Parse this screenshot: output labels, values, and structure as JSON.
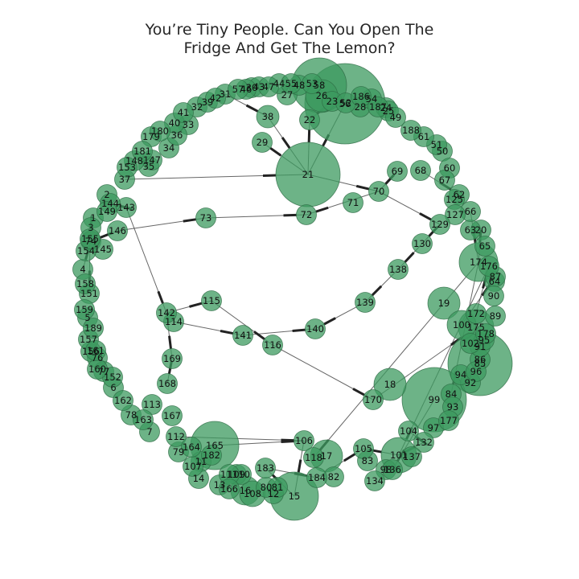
{
  "title": "You’re Tiny People. Can You Open The\nFridge And Get The Lemon?",
  "colors": {
    "node_fill": "#3c9a5f",
    "node_stroke": "#2e6b45",
    "edge": "#333333",
    "title": "#262626"
  },
  "graph": {
    "nodes": [
      {
        "id": "1",
        "label": "1",
        "size": 1
      },
      {
        "id": "2",
        "label": "2",
        "size": 1
      },
      {
        "id": "3",
        "label": "3",
        "size": 1
      },
      {
        "id": "4",
        "label": "4",
        "size": 1
      },
      {
        "id": "5",
        "label": "5",
        "size": 1
      },
      {
        "id": "6",
        "label": "6",
        "size": 1
      },
      {
        "id": "7",
        "label": "7",
        "size": 1
      },
      {
        "id": "11",
        "label": "11",
        "size": 1
      },
      {
        "id": "12",
        "label": "12",
        "size": 1
      },
      {
        "id": "13",
        "label": "13",
        "size": 1
      },
      {
        "id": "14",
        "label": "14",
        "size": 1
      },
      {
        "id": "15",
        "label": "15",
        "size": 4
      },
      {
        "id": "16",
        "label": "16",
        "size": 1.5
      },
      {
        "id": "17",
        "label": "17",
        "size": 2
      },
      {
        "id": "18",
        "label": "18",
        "size": 2
      },
      {
        "id": "19",
        "label": "19",
        "size": 2
      },
      {
        "id": "20",
        "label": "20",
        "size": 1
      },
      {
        "id": "21",
        "label": "21",
        "size": 6
      },
      {
        "id": "22",
        "label": "22",
        "size": 1
      },
      {
        "id": "23",
        "label": "23",
        "size": 1
      },
      {
        "id": "24",
        "label": "24",
        "size": 1
      },
      {
        "id": "25",
        "label": "25",
        "size": 1
      },
      {
        "id": "26",
        "label": "26",
        "size": 3
      },
      {
        "id": "27",
        "label": "27",
        "size": 1
      },
      {
        "id": "28",
        "label": "28",
        "size": 1
      },
      {
        "id": "29",
        "label": "29",
        "size": 1
      },
      {
        "id": "30",
        "label": "30",
        "size": 1
      },
      {
        "id": "31",
        "label": "31",
        "size": 1
      },
      {
        "id": "32",
        "label": "32",
        "size": 1
      },
      {
        "id": "33",
        "label": "33",
        "size": 1
      },
      {
        "id": "34",
        "label": "34",
        "size": 1
      },
      {
        "id": "35",
        "label": "35",
        "size": 1
      },
      {
        "id": "36",
        "label": "36",
        "size": 1
      },
      {
        "id": "37",
        "label": "37",
        "size": 1
      },
      {
        "id": "38",
        "label": "38",
        "size": 1.2
      },
      {
        "id": "39",
        "label": "39",
        "size": 1
      },
      {
        "id": "40",
        "label": "40",
        "size": 1
      },
      {
        "id": "41",
        "label": "41",
        "size": 1
      },
      {
        "id": "42",
        "label": "42",
        "size": 1
      },
      {
        "id": "43",
        "label": "43",
        "size": 1
      },
      {
        "id": "44",
        "label": "44",
        "size": 1
      },
      {
        "id": "46",
        "label": "46",
        "size": 1
      },
      {
        "id": "47",
        "label": "47",
        "size": 1
      },
      {
        "id": "48",
        "label": "48",
        "size": 1
      },
      {
        "id": "49",
        "label": "49",
        "size": 1
      },
      {
        "id": "50",
        "label": "50",
        "size": 1
      },
      {
        "id": "51",
        "label": "51",
        "size": 1
      },
      {
        "id": "52",
        "label": "52",
        "size": 1
      },
      {
        "id": "53",
        "label": "53",
        "size": 1
      },
      {
        "id": "54",
        "label": "54",
        "size": 1
      },
      {
        "id": "55",
        "label": "55",
        "size": 1
      },
      {
        "id": "56",
        "label": "56",
        "size": 8
      },
      {
        "id": "57",
        "label": "57",
        "size": 1
      },
      {
        "id": "58",
        "label": "58",
        "size": 4
      },
      {
        "id": "60",
        "label": "60",
        "size": 1
      },
      {
        "id": "61",
        "label": "61",
        "size": 1
      },
      {
        "id": "62",
        "label": "62",
        "size": 1
      },
      {
        "id": "63",
        "label": "63",
        "size": 1
      },
      {
        "id": "64",
        "label": "64",
        "size": 1
      },
      {
        "id": "65",
        "label": "65",
        "size": 1
      },
      {
        "id": "66",
        "label": "66",
        "size": 1
      },
      {
        "id": "67",
        "label": "67",
        "size": 1
      },
      {
        "id": "68",
        "label": "68",
        "size": 1
      },
      {
        "id": "69",
        "label": "69",
        "size": 1
      },
      {
        "id": "70",
        "label": "70",
        "size": 1
      },
      {
        "id": "71",
        "label": "71",
        "size": 1
      },
      {
        "id": "72",
        "label": "72",
        "size": 1
      },
      {
        "id": "73",
        "label": "73",
        "size": 1
      },
      {
        "id": "74",
        "label": "74",
        "size": 1
      },
      {
        "id": "76",
        "label": "76",
        "size": 1
      },
      {
        "id": "77",
        "label": "77",
        "size": 1
      },
      {
        "id": "78",
        "label": "78",
        "size": 1
      },
      {
        "id": "79",
        "label": "79",
        "size": 1
      },
      {
        "id": "80",
        "label": "80",
        "size": 1
      },
      {
        "id": "81",
        "label": "81",
        "size": 1
      },
      {
        "id": "82",
        "label": "82",
        "size": 1
      },
      {
        "id": "83",
        "label": "83",
        "size": 1
      },
      {
        "id": "84",
        "label": "84",
        "size": 1
      },
      {
        "id": "85",
        "label": "85",
        "size": 3
      },
      {
        "id": "86",
        "label": "86",
        "size": 1
      },
      {
        "id": "87",
        "label": "87",
        "size": 1
      },
      {
        "id": "89",
        "label": "89",
        "size": 1
      },
      {
        "id": "90",
        "label": "90",
        "size": 1
      },
      {
        "id": "91",
        "label": "91",
        "size": 1
      },
      {
        "id": "92",
        "label": "92",
        "size": 1
      },
      {
        "id": "93",
        "label": "93",
        "size": 1
      },
      {
        "id": "94",
        "label": "94",
        "size": 1
      },
      {
        "id": "95",
        "label": "95",
        "size": 1
      },
      {
        "id": "96",
        "label": "96",
        "size": 1
      },
      {
        "id": "97",
        "label": "97",
        "size": 1
      },
      {
        "id": "98",
        "label": "98",
        "size": 1
      },
      {
        "id": "99",
        "label": "99",
        "size": 6
      },
      {
        "id": "100",
        "label": "100",
        "size": 1.5
      },
      {
        "id": "101",
        "label": "101",
        "size": 2
      },
      {
        "id": "102",
        "label": "102",
        "size": 1
      },
      {
        "id": "104",
        "label": "104",
        "size": 1
      },
      {
        "id": "105",
        "label": "105",
        "size": 1
      },
      {
        "id": "106",
        "label": "106",
        "size": 1
      },
      {
        "id": "107",
        "label": "107",
        "size": 1
      },
      {
        "id": "108",
        "label": "108",
        "size": 1.5
      },
      {
        "id": "109",
        "label": "109",
        "size": 1
      },
      {
        "id": "110",
        "label": "110",
        "size": 1
      },
      {
        "id": "111",
        "label": "111",
        "size": 1
      },
      {
        "id": "112",
        "label": "112",
        "size": 1
      },
      {
        "id": "113",
        "label": "113",
        "size": 1
      },
      {
        "id": "114",
        "label": "114",
        "size": 1
      },
      {
        "id": "115",
        "label": "115",
        "size": 1
      },
      {
        "id": "116",
        "label": "116",
        "size": 1
      },
      {
        "id": "118",
        "label": "118",
        "size": 1
      },
      {
        "id": "125",
        "label": "125",
        "size": 1
      },
      {
        "id": "127",
        "label": "127",
        "size": 1
      },
      {
        "id": "129",
        "label": "129",
        "size": 1
      },
      {
        "id": "130",
        "label": "130",
        "size": 1
      },
      {
        "id": "132",
        "label": "132",
        "size": 1
      },
      {
        "id": "134",
        "label": "134",
        "size": 1
      },
      {
        "id": "136",
        "label": "136",
        "size": 1
      },
      {
        "id": "137",
        "label": "137",
        "size": 1
      },
      {
        "id": "138",
        "label": "138",
        "size": 1
      },
      {
        "id": "139",
        "label": "139",
        "size": 1
      },
      {
        "id": "140",
        "label": "140",
        "size": 1
      },
      {
        "id": "141",
        "label": "141",
        "size": 1
      },
      {
        "id": "142",
        "label": "142",
        "size": 1
      },
      {
        "id": "143",
        "label": "143",
        "size": 1
      },
      {
        "id": "144",
        "label": "144",
        "size": 1
      },
      {
        "id": "145",
        "label": "145",
        "size": 1
      },
      {
        "id": "146",
        "label": "146",
        "size": 1
      },
      {
        "id": "147",
        "label": "147",
        "size": 1
      },
      {
        "id": "148",
        "label": "148",
        "size": 1
      },
      {
        "id": "149",
        "label": "149",
        "size": 1
      },
      {
        "id": "151",
        "label": "151",
        "size": 1
      },
      {
        "id": "152",
        "label": "152",
        "size": 1
      },
      {
        "id": "153",
        "label": "153",
        "size": 1
      },
      {
        "id": "154",
        "label": "154",
        "size": 1
      },
      {
        "id": "155",
        "label": "155",
        "size": 1
      },
      {
        "id": "156",
        "label": "156",
        "size": 1
      },
      {
        "id": "157",
        "label": "157",
        "size": 1
      },
      {
        "id": "158",
        "label": "158",
        "size": 1
      },
      {
        "id": "159",
        "label": "159",
        "size": 1
      },
      {
        "id": "160",
        "label": "160",
        "size": 1
      },
      {
        "id": "161",
        "label": "161",
        "size": 1
      },
      {
        "id": "162",
        "label": "162",
        "size": 1
      },
      {
        "id": "163",
        "label": "163",
        "size": 1
      },
      {
        "id": "164",
        "label": "164",
        "size": 1
      },
      {
        "id": "165",
        "label": "165",
        "size": 3
      },
      {
        "id": "166",
        "label": "166",
        "size": 1
      },
      {
        "id": "167",
        "label": "167",
        "size": 1
      },
      {
        "id": "168",
        "label": "168",
        "size": 1
      },
      {
        "id": "169",
        "label": "169",
        "size": 1
      },
      {
        "id": "170",
        "label": "170",
        "size": 1
      },
      {
        "id": "172",
        "label": "172",
        "size": 1
      },
      {
        "id": "174",
        "label": "174",
        "size": 2
      },
      {
        "id": "175",
        "label": "175",
        "size": 2
      },
      {
        "id": "176",
        "label": "176",
        "size": 1
      },
      {
        "id": "177",
        "label": "177",
        "size": 1
      },
      {
        "id": "178",
        "label": "178",
        "size": 1
      },
      {
        "id": "179",
        "label": "179",
        "size": 1
      },
      {
        "id": "180",
        "label": "180",
        "size": 1
      },
      {
        "id": "181",
        "label": "181",
        "size": 1
      },
      {
        "id": "182",
        "label": "182",
        "size": 1
      },
      {
        "id": "183",
        "label": "183",
        "size": 1
      },
      {
        "id": "184",
        "label": "184",
        "size": 1
      },
      {
        "id": "186",
        "label": "186",
        "size": 1
      },
      {
        "id": "187",
        "label": "187",
        "size": 1
      },
      {
        "id": "188",
        "label": "188",
        "size": 1
      },
      {
        "id": "189",
        "label": "189",
        "size": 1
      }
    ],
    "edges": [
      {
        "source": "37",
        "target": "21"
      },
      {
        "source": "38",
        "target": "21"
      },
      {
        "source": "22",
        "target": "21"
      },
      {
        "source": "56",
        "target": "21"
      },
      {
        "source": "21",
        "target": "29"
      },
      {
        "source": "21",
        "target": "70"
      },
      {
        "source": "31",
        "target": "38"
      },
      {
        "source": "23",
        "target": "22"
      },
      {
        "source": "70",
        "target": "72"
      },
      {
        "source": "69",
        "target": "70"
      },
      {
        "source": "73",
        "target": "72"
      },
      {
        "source": "146",
        "target": "73"
      },
      {
        "source": "70",
        "target": "129"
      },
      {
        "source": "143",
        "target": "142"
      },
      {
        "source": "142",
        "target": "115"
      },
      {
        "source": "115",
        "target": "116"
      },
      {
        "source": "114",
        "target": "141"
      },
      {
        "source": "141",
        "target": "140"
      },
      {
        "source": "139",
        "target": "140"
      },
      {
        "source": "138",
        "target": "139"
      },
      {
        "source": "130",
        "target": "138"
      },
      {
        "source": "129",
        "target": "130"
      },
      {
        "source": "116",
        "target": "170"
      },
      {
        "source": "170",
        "target": "175"
      },
      {
        "source": "174",
        "target": "118"
      },
      {
        "source": "112",
        "target": "106"
      },
      {
        "source": "106",
        "target": "15"
      },
      {
        "source": "15",
        "target": "183"
      },
      {
        "source": "183",
        "target": "184"
      },
      {
        "source": "184",
        "target": "105"
      },
      {
        "source": "105",
        "target": "101"
      },
      {
        "source": "165",
        "target": "106"
      },
      {
        "source": "68",
        "target": "62"
      },
      {
        "source": "66",
        "target": "174"
      },
      {
        "source": "20",
        "target": "174"
      },
      {
        "source": "100",
        "target": "87"
      },
      {
        "source": "172",
        "target": "176"
      },
      {
        "source": "143",
        "target": "144"
      },
      {
        "source": "142",
        "target": "169"
      },
      {
        "source": "169",
        "target": "168"
      },
      {
        "source": "3",
        "target": "155"
      },
      {
        "source": "74",
        "target": "4"
      },
      {
        "source": "155",
        "target": "151"
      },
      {
        "source": "101",
        "target": "132"
      },
      {
        "source": "132",
        "target": "104"
      },
      {
        "source": "174",
        "target": "84"
      },
      {
        "source": "176",
        "target": "101"
      },
      {
        "source": "99",
        "target": "136"
      },
      {
        "source": "146",
        "target": "74"
      }
    ]
  }
}
